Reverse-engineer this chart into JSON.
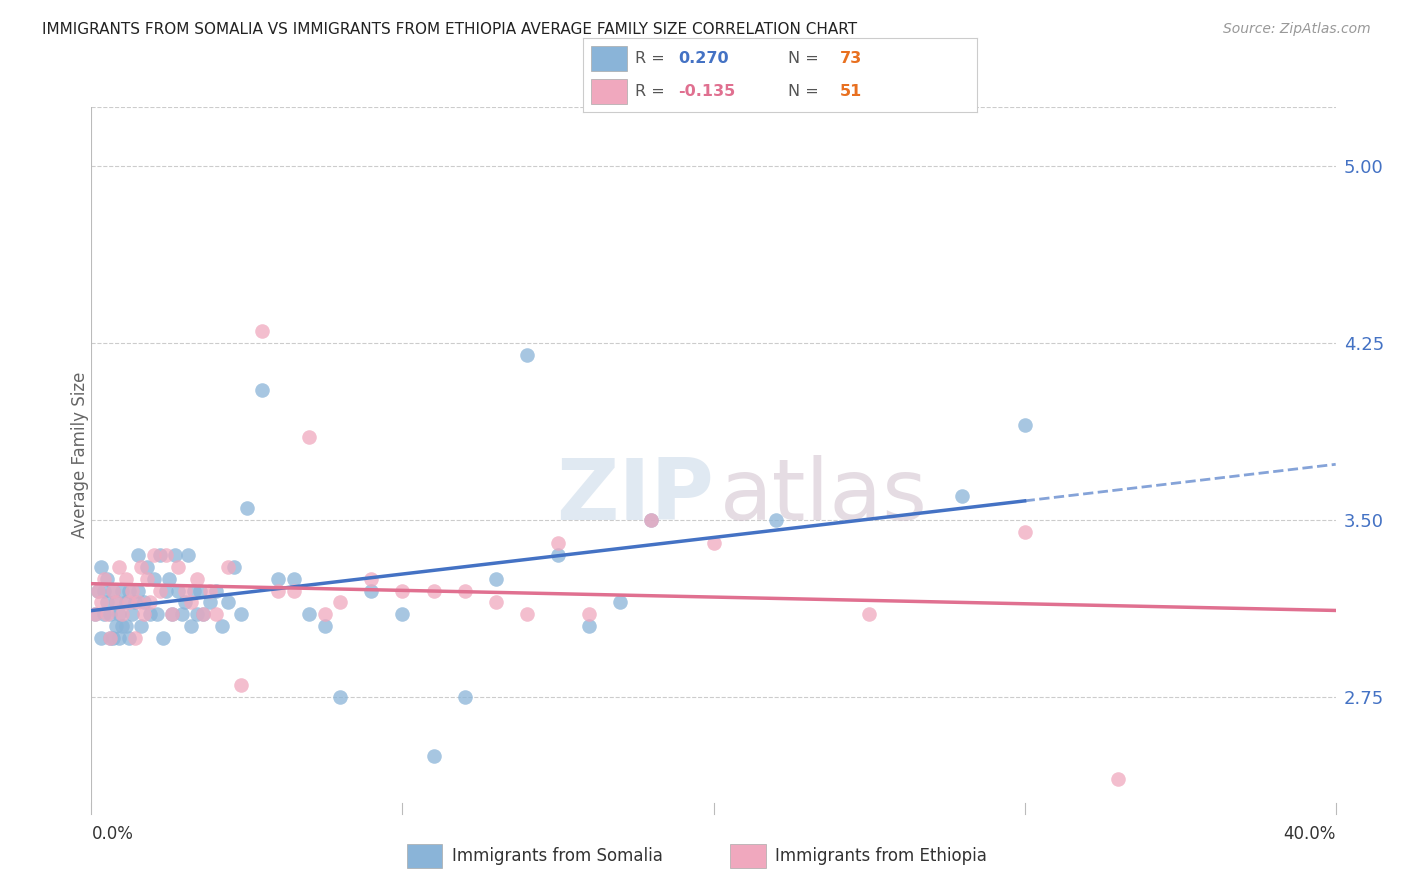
{
  "title": "IMMIGRANTS FROM SOMALIA VS IMMIGRANTS FROM ETHIOPIA AVERAGE FAMILY SIZE CORRELATION CHART",
  "source": "Source: ZipAtlas.com",
  "ylabel": "Average Family Size",
  "yticks": [
    2.75,
    3.5,
    4.25,
    5.0
  ],
  "xlim": [
    0.0,
    0.4
  ],
  "ylim": [
    2.3,
    5.25
  ],
  "background_color": "#ffffff",
  "grid_color": "#cccccc",
  "somalia_color": "#8ab4d8",
  "ethiopia_color": "#f0a8be",
  "somalia_line_color": "#4472c4",
  "ethiopia_line_color": "#e07090",
  "somalia_R": 0.27,
  "somalia_N": 73,
  "ethiopia_R": -0.135,
  "ethiopia_N": 51,
  "legend_R_color": "#555555",
  "legend_N_label_color": "#555555",
  "legend_N_value_color": "#e87020",
  "ytick_color": "#4472c4",
  "somalia_scatter_x": [
    0.001,
    0.002,
    0.003,
    0.003,
    0.004,
    0.004,
    0.005,
    0.005,
    0.006,
    0.006,
    0.007,
    0.007,
    0.008,
    0.008,
    0.009,
    0.009,
    0.01,
    0.01,
    0.011,
    0.011,
    0.012,
    0.012,
    0.013,
    0.014,
    0.015,
    0.015,
    0.016,
    0.017,
    0.018,
    0.019,
    0.02,
    0.021,
    0.022,
    0.023,
    0.024,
    0.025,
    0.026,
    0.027,
    0.028,
    0.029,
    0.03,
    0.031,
    0.032,
    0.033,
    0.034,
    0.035,
    0.036,
    0.038,
    0.04,
    0.042,
    0.044,
    0.046,
    0.048,
    0.05,
    0.055,
    0.06,
    0.065,
    0.07,
    0.075,
    0.08,
    0.09,
    0.1,
    0.11,
    0.12,
    0.13,
    0.14,
    0.15,
    0.16,
    0.17,
    0.18,
    0.22,
    0.28,
    0.3
  ],
  "somalia_scatter_y": [
    3.1,
    3.2,
    3.3,
    3.0,
    3.1,
    3.2,
    3.15,
    3.25,
    3.0,
    3.1,
    3.0,
    3.2,
    3.05,
    3.15,
    3.0,
    3.1,
    3.05,
    3.2,
    3.05,
    3.15,
    3.0,
    3.2,
    3.1,
    3.15,
    3.2,
    3.35,
    3.05,
    3.15,
    3.3,
    3.1,
    3.25,
    3.1,
    3.35,
    3.0,
    3.2,
    3.25,
    3.1,
    3.35,
    3.2,
    3.1,
    3.15,
    3.35,
    3.05,
    3.2,
    3.1,
    3.2,
    3.1,
    3.15,
    3.2,
    3.05,
    3.15,
    3.3,
    3.1,
    3.55,
    4.05,
    3.25,
    3.25,
    3.1,
    3.05,
    2.75,
    3.2,
    3.1,
    2.5,
    2.75,
    3.25,
    4.2,
    3.35,
    3.05,
    3.15,
    3.5,
    3.5,
    3.6,
    3.9
  ],
  "ethiopia_scatter_x": [
    0.001,
    0.002,
    0.003,
    0.004,
    0.005,
    0.006,
    0.007,
    0.008,
    0.009,
    0.01,
    0.011,
    0.012,
    0.013,
    0.014,
    0.015,
    0.016,
    0.017,
    0.018,
    0.019,
    0.02,
    0.022,
    0.024,
    0.026,
    0.028,
    0.03,
    0.032,
    0.034,
    0.036,
    0.038,
    0.04,
    0.044,
    0.048,
    0.055,
    0.06,
    0.065,
    0.07,
    0.075,
    0.08,
    0.09,
    0.1,
    0.11,
    0.12,
    0.13,
    0.14,
    0.15,
    0.16,
    0.18,
    0.2,
    0.25,
    0.3,
    0.33
  ],
  "ethiopia_scatter_y": [
    3.1,
    3.2,
    3.15,
    3.25,
    3.1,
    3.0,
    3.2,
    3.15,
    3.3,
    3.1,
    3.25,
    3.15,
    3.2,
    3.0,
    3.15,
    3.3,
    3.1,
    3.25,
    3.15,
    3.35,
    3.2,
    3.35,
    3.1,
    3.3,
    3.2,
    3.15,
    3.25,
    3.1,
    3.2,
    3.1,
    3.3,
    2.8,
    4.3,
    3.2,
    3.2,
    3.85,
    3.1,
    3.15,
    3.25,
    3.2,
    3.2,
    3.2,
    3.15,
    3.1,
    3.4,
    3.1,
    3.5,
    3.4,
    3.1,
    3.45,
    2.4
  ]
}
